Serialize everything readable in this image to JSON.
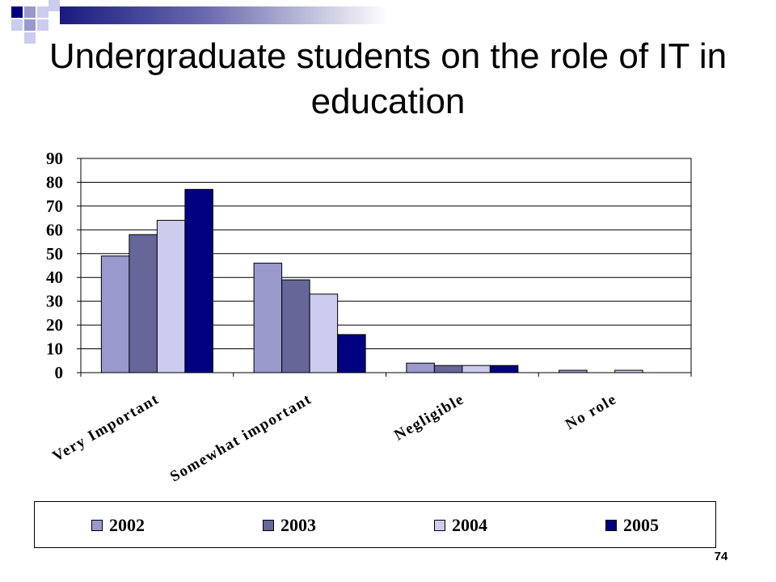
{
  "slide": {
    "title": "Undergraduate students on the role of IT in education",
    "page_number": "74"
  },
  "chart_data": {
    "type": "bar",
    "title": "Undergraduate students on the role of IT in education",
    "xlabel": "",
    "ylabel": "",
    "ylim": [
      0,
      90
    ],
    "yticks": [
      "0",
      "10",
      "20",
      "30",
      "40",
      "50",
      "60",
      "70",
      "80",
      "90"
    ],
    "grid": true,
    "legend_position": "bottom",
    "categories": [
      "Very Important",
      "Somewhat important",
      "Negligible",
      "No role"
    ],
    "series": [
      {
        "name": "2002",
        "color": "#9999cc",
        "values": [
          49,
          46,
          4,
          1
        ]
      },
      {
        "name": "2003",
        "color": "#666699",
        "values": [
          58,
          39,
          3,
          0
        ]
      },
      {
        "name": "2004",
        "color": "#ccccee",
        "values": [
          64,
          33,
          3,
          1
        ]
      },
      {
        "name": "2005",
        "color": "#000080",
        "values": [
          77,
          16,
          3,
          0
        ]
      }
    ]
  }
}
